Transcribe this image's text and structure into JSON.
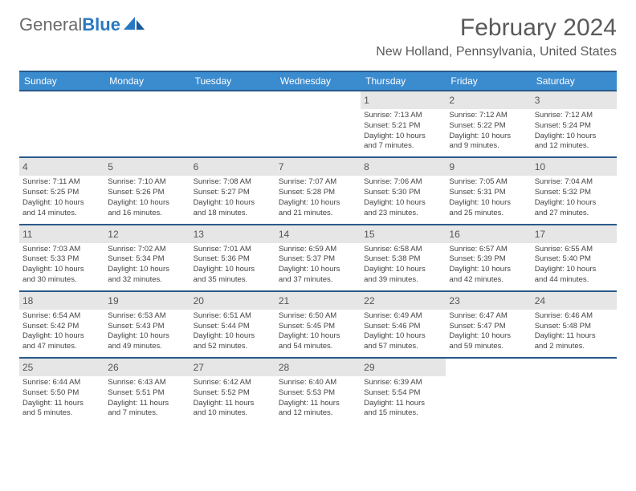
{
  "logo": {
    "text1": "General",
    "text2": "Blue"
  },
  "title": "February 2024",
  "location": "New Holland, Pennsylvania, United States",
  "dayHeaders": [
    "Sunday",
    "Monday",
    "Tuesday",
    "Wednesday",
    "Thursday",
    "Friday",
    "Saturday"
  ],
  "colors": {
    "headerBg": "#3b8bcf",
    "headerBorder": "#2a5a8a",
    "dayBarBg": "#e6e6e6",
    "textMuted": "#5a5a5a",
    "logoBlue": "#2a78c2"
  },
  "weeks": [
    [
      {
        "n": "",
        "l1": "",
        "l2": "",
        "l3": "",
        "l4": ""
      },
      {
        "n": "",
        "l1": "",
        "l2": "",
        "l3": "",
        "l4": ""
      },
      {
        "n": "",
        "l1": "",
        "l2": "",
        "l3": "",
        "l4": ""
      },
      {
        "n": "",
        "l1": "",
        "l2": "",
        "l3": "",
        "l4": ""
      },
      {
        "n": "1",
        "l1": "Sunrise: 7:13 AM",
        "l2": "Sunset: 5:21 PM",
        "l3": "Daylight: 10 hours",
        "l4": "and 7 minutes."
      },
      {
        "n": "2",
        "l1": "Sunrise: 7:12 AM",
        "l2": "Sunset: 5:22 PM",
        "l3": "Daylight: 10 hours",
        "l4": "and 9 minutes."
      },
      {
        "n": "3",
        "l1": "Sunrise: 7:12 AM",
        "l2": "Sunset: 5:24 PM",
        "l3": "Daylight: 10 hours",
        "l4": "and 12 minutes."
      }
    ],
    [
      {
        "n": "4",
        "l1": "Sunrise: 7:11 AM",
        "l2": "Sunset: 5:25 PM",
        "l3": "Daylight: 10 hours",
        "l4": "and 14 minutes."
      },
      {
        "n": "5",
        "l1": "Sunrise: 7:10 AM",
        "l2": "Sunset: 5:26 PM",
        "l3": "Daylight: 10 hours",
        "l4": "and 16 minutes."
      },
      {
        "n": "6",
        "l1": "Sunrise: 7:08 AM",
        "l2": "Sunset: 5:27 PM",
        "l3": "Daylight: 10 hours",
        "l4": "and 18 minutes."
      },
      {
        "n": "7",
        "l1": "Sunrise: 7:07 AM",
        "l2": "Sunset: 5:28 PM",
        "l3": "Daylight: 10 hours",
        "l4": "and 21 minutes."
      },
      {
        "n": "8",
        "l1": "Sunrise: 7:06 AM",
        "l2": "Sunset: 5:30 PM",
        "l3": "Daylight: 10 hours",
        "l4": "and 23 minutes."
      },
      {
        "n": "9",
        "l1": "Sunrise: 7:05 AM",
        "l2": "Sunset: 5:31 PM",
        "l3": "Daylight: 10 hours",
        "l4": "and 25 minutes."
      },
      {
        "n": "10",
        "l1": "Sunrise: 7:04 AM",
        "l2": "Sunset: 5:32 PM",
        "l3": "Daylight: 10 hours",
        "l4": "and 27 minutes."
      }
    ],
    [
      {
        "n": "11",
        "l1": "Sunrise: 7:03 AM",
        "l2": "Sunset: 5:33 PM",
        "l3": "Daylight: 10 hours",
        "l4": "and 30 minutes."
      },
      {
        "n": "12",
        "l1": "Sunrise: 7:02 AM",
        "l2": "Sunset: 5:34 PM",
        "l3": "Daylight: 10 hours",
        "l4": "and 32 minutes."
      },
      {
        "n": "13",
        "l1": "Sunrise: 7:01 AM",
        "l2": "Sunset: 5:36 PM",
        "l3": "Daylight: 10 hours",
        "l4": "and 35 minutes."
      },
      {
        "n": "14",
        "l1": "Sunrise: 6:59 AM",
        "l2": "Sunset: 5:37 PM",
        "l3": "Daylight: 10 hours",
        "l4": "and 37 minutes."
      },
      {
        "n": "15",
        "l1": "Sunrise: 6:58 AM",
        "l2": "Sunset: 5:38 PM",
        "l3": "Daylight: 10 hours",
        "l4": "and 39 minutes."
      },
      {
        "n": "16",
        "l1": "Sunrise: 6:57 AM",
        "l2": "Sunset: 5:39 PM",
        "l3": "Daylight: 10 hours",
        "l4": "and 42 minutes."
      },
      {
        "n": "17",
        "l1": "Sunrise: 6:55 AM",
        "l2": "Sunset: 5:40 PM",
        "l3": "Daylight: 10 hours",
        "l4": "and 44 minutes."
      }
    ],
    [
      {
        "n": "18",
        "l1": "Sunrise: 6:54 AM",
        "l2": "Sunset: 5:42 PM",
        "l3": "Daylight: 10 hours",
        "l4": "and 47 minutes."
      },
      {
        "n": "19",
        "l1": "Sunrise: 6:53 AM",
        "l2": "Sunset: 5:43 PM",
        "l3": "Daylight: 10 hours",
        "l4": "and 49 minutes."
      },
      {
        "n": "20",
        "l1": "Sunrise: 6:51 AM",
        "l2": "Sunset: 5:44 PM",
        "l3": "Daylight: 10 hours",
        "l4": "and 52 minutes."
      },
      {
        "n": "21",
        "l1": "Sunrise: 6:50 AM",
        "l2": "Sunset: 5:45 PM",
        "l3": "Daylight: 10 hours",
        "l4": "and 54 minutes."
      },
      {
        "n": "22",
        "l1": "Sunrise: 6:49 AM",
        "l2": "Sunset: 5:46 PM",
        "l3": "Daylight: 10 hours",
        "l4": "and 57 minutes."
      },
      {
        "n": "23",
        "l1": "Sunrise: 6:47 AM",
        "l2": "Sunset: 5:47 PM",
        "l3": "Daylight: 10 hours",
        "l4": "and 59 minutes."
      },
      {
        "n": "24",
        "l1": "Sunrise: 6:46 AM",
        "l2": "Sunset: 5:48 PM",
        "l3": "Daylight: 11 hours",
        "l4": "and 2 minutes."
      }
    ],
    [
      {
        "n": "25",
        "l1": "Sunrise: 6:44 AM",
        "l2": "Sunset: 5:50 PM",
        "l3": "Daylight: 11 hours",
        "l4": "and 5 minutes."
      },
      {
        "n": "26",
        "l1": "Sunrise: 6:43 AM",
        "l2": "Sunset: 5:51 PM",
        "l3": "Daylight: 11 hours",
        "l4": "and 7 minutes."
      },
      {
        "n": "27",
        "l1": "Sunrise: 6:42 AM",
        "l2": "Sunset: 5:52 PM",
        "l3": "Daylight: 11 hours",
        "l4": "and 10 minutes."
      },
      {
        "n": "28",
        "l1": "Sunrise: 6:40 AM",
        "l2": "Sunset: 5:53 PM",
        "l3": "Daylight: 11 hours",
        "l4": "and 12 minutes."
      },
      {
        "n": "29",
        "l1": "Sunrise: 6:39 AM",
        "l2": "Sunset: 5:54 PM",
        "l3": "Daylight: 11 hours",
        "l4": "and 15 minutes."
      },
      {
        "n": "",
        "l1": "",
        "l2": "",
        "l3": "",
        "l4": ""
      },
      {
        "n": "",
        "l1": "",
        "l2": "",
        "l3": "",
        "l4": ""
      }
    ]
  ]
}
